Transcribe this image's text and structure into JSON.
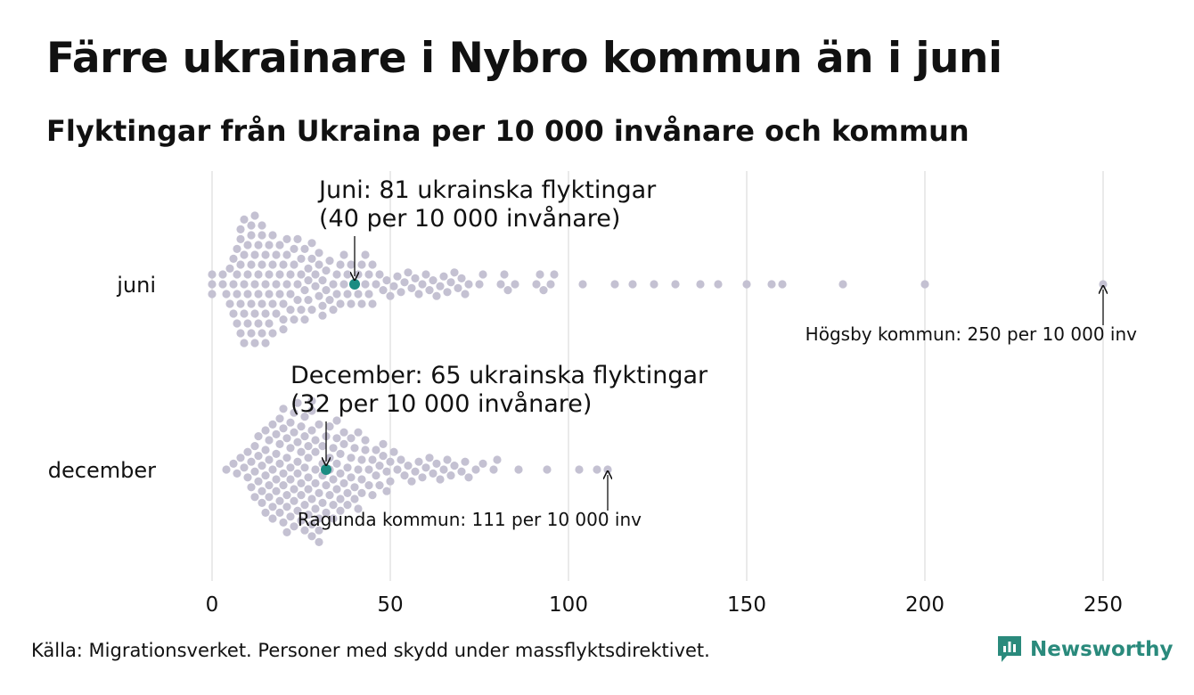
{
  "title": "Färre ukrainare i Nybro kommun än i juni",
  "subtitle": "Flyktingar från Ukraina per 10 000 invånare och kommun",
  "source": "Källa: Migrationsverket. Personer med skydd under massflyktsdirektivet.",
  "brand": "Newsworthy",
  "colors": {
    "dot": "#c4c1d2",
    "highlight": "#1a8c82",
    "grid": "#d4d4d4",
    "brand": "#2a8a7c"
  },
  "chart_data": {
    "type": "scatter",
    "xlim": [
      0,
      250
    ],
    "x_ticks": [
      0,
      50,
      100,
      150,
      200,
      250
    ],
    "grid": true,
    "rows": [
      {
        "label": "juni",
        "highlight": {
          "value": 40,
          "annotation": [
            "Juni: 81 ukrainska flyktingar",
            "(40 per 10 000 invånare)"
          ]
        },
        "extreme": {
          "value": 250,
          "annotation": "Högsby kommun: 250 per 10 000 inv"
        },
        "values": [
          0,
          0,
          0,
          3,
          3,
          4,
          5,
          5,
          6,
          6,
          6,
          7,
          7,
          7,
          7,
          8,
          8,
          8,
          8,
          8,
          9,
          9,
          9,
          9,
          9,
          10,
          10,
          10,
          10,
          11,
          11,
          11,
          11,
          11,
          12,
          12,
          12,
          12,
          12,
          13,
          13,
          13,
          13,
          14,
          14,
          14,
          14,
          14,
          15,
          15,
          15,
          15,
          16,
          16,
          16,
          16,
          17,
          17,
          17,
          17,
          18,
          18,
          18,
          19,
          19,
          19,
          20,
          20,
          20,
          20,
          21,
          21,
          21,
          22,
          22,
          22,
          23,
          23,
          23,
          24,
          24,
          24,
          25,
          25,
          25,
          26,
          26,
          26,
          27,
          27,
          27,
          28,
          28,
          28,
          29,
          29,
          30,
          30,
          30,
          31,
          31,
          31,
          32,
          32,
          33,
          33,
          34,
          34,
          35,
          35,
          36,
          36,
          37,
          37,
          38,
          38,
          39,
          39,
          40,
          41,
          41,
          42,
          42,
          43,
          43,
          44,
          44,
          45,
          45,
          46,
          47,
          48,
          49,
          50,
          51,
          52,
          53,
          54,
          55,
          56,
          57,
          58,
          59,
          60,
          61,
          62,
          63,
          64,
          65,
          66,
          67,
          68,
          69,
          70,
          71,
          72,
          75,
          76,
          81,
          82,
          83,
          85,
          91,
          92,
          93,
          95,
          96,
          104,
          113,
          118,
          124,
          130,
          137,
          142,
          150,
          157,
          160,
          177,
          200,
          250
        ]
      },
      {
        "label": "december",
        "highlight": {
          "value": 32,
          "annotation": [
            "December: 65 ukrainska flyktingar",
            "(32 per 10 000 invånare)"
          ]
        },
        "extreme": {
          "value": 111,
          "annotation": "Ragunda kommun: 111 per 10 000 inv"
        },
        "values": [
          4,
          6,
          7,
          8,
          9,
          10,
          10,
          11,
          11,
          12,
          12,
          12,
          13,
          13,
          13,
          14,
          14,
          14,
          15,
          15,
          15,
          15,
          16,
          16,
          16,
          16,
          17,
          17,
          17,
          17,
          18,
          18,
          18,
          18,
          19,
          19,
          19,
          19,
          19,
          20,
          20,
          20,
          20,
          20,
          21,
          21,
          21,
          21,
          21,
          22,
          22,
          22,
          22,
          22,
          23,
          23,
          23,
          23,
          23,
          24,
          24,
          24,
          24,
          24,
          25,
          25,
          25,
          25,
          25,
          26,
          26,
          26,
          26,
          26,
          27,
          27,
          27,
          27,
          27,
          28,
          28,
          28,
          28,
          28,
          28,
          29,
          29,
          29,
          29,
          29,
          30,
          30,
          30,
          30,
          30,
          31,
          31,
          31,
          31,
          32,
          32,
          32,
          33,
          33,
          33,
          33,
          34,
          34,
          34,
          34,
          35,
          35,
          35,
          35,
          36,
          36,
          36,
          36,
          37,
          37,
          37,
          38,
          38,
          38,
          39,
          39,
          39,
          40,
          40,
          40,
          41,
          41,
          41,
          42,
          42,
          42,
          43,
          43,
          44,
          44,
          45,
          45,
          46,
          46,
          47,
          47,
          48,
          48,
          49,
          49,
          50,
          50,
          51,
          52,
          53,
          54,
          55,
          56,
          57,
          58,
          59,
          60,
          61,
          62,
          63,
          64,
          65,
          66,
          67,
          68,
          70,
          71,
          72,
          74,
          76,
          79,
          80,
          86,
          94,
          103,
          108,
          111
        ]
      }
    ]
  }
}
